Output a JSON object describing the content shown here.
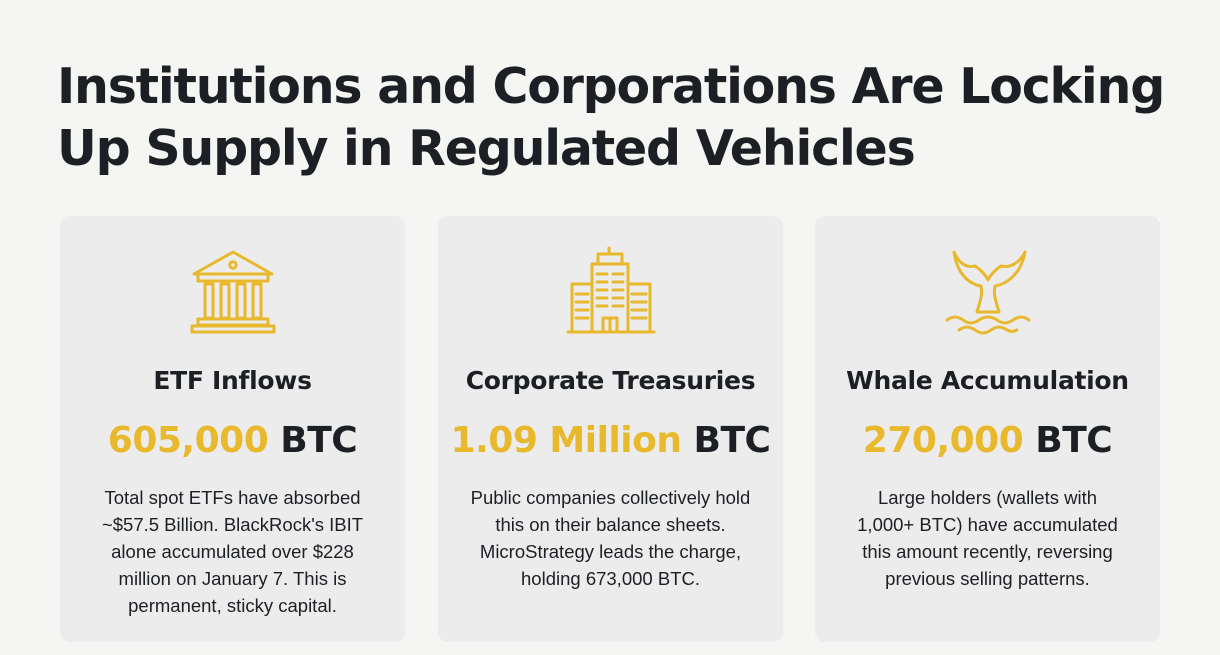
{
  "page": {
    "title": "Institutions and Corporations Are Locking Up Supply in Regulated Vehicles",
    "accent_color": "#e8b82d",
    "text_color": "#1c1f24",
    "card_background": "#ececec",
    "page_background": "#f5f5f3"
  },
  "cards": [
    {
      "icon": "bank-building-icon",
      "title": "ETF Inflows",
      "stat_value": "605,000",
      "stat_unit": "BTC",
      "description_lines": [
        "Total spot ETFs have absorbed",
        "~$57.5 Billion. BlackRock's IBIT",
        "alone accumulated over $228",
        "million on January 7. This is",
        "permanent, sticky capital."
      ]
    },
    {
      "icon": "office-building-icon",
      "title": "Corporate Treasuries",
      "stat_value": "1.09 Million",
      "stat_unit": "BTC",
      "description_lines": [
        "Public companies collectively hold",
        "this on their balance sheets.",
        "MicroStrategy leads the charge,",
        "holding 673,000 BTC."
      ]
    },
    {
      "icon": "whale-tail-icon",
      "title": "Whale Accumulation",
      "stat_value": "270,000",
      "stat_unit": "BTC",
      "description_lines": [
        "Large holders (wallets with",
        "1,000+ BTC) have accumulated",
        "this amount recently, reversing",
        "previous selling patterns."
      ]
    }
  ]
}
